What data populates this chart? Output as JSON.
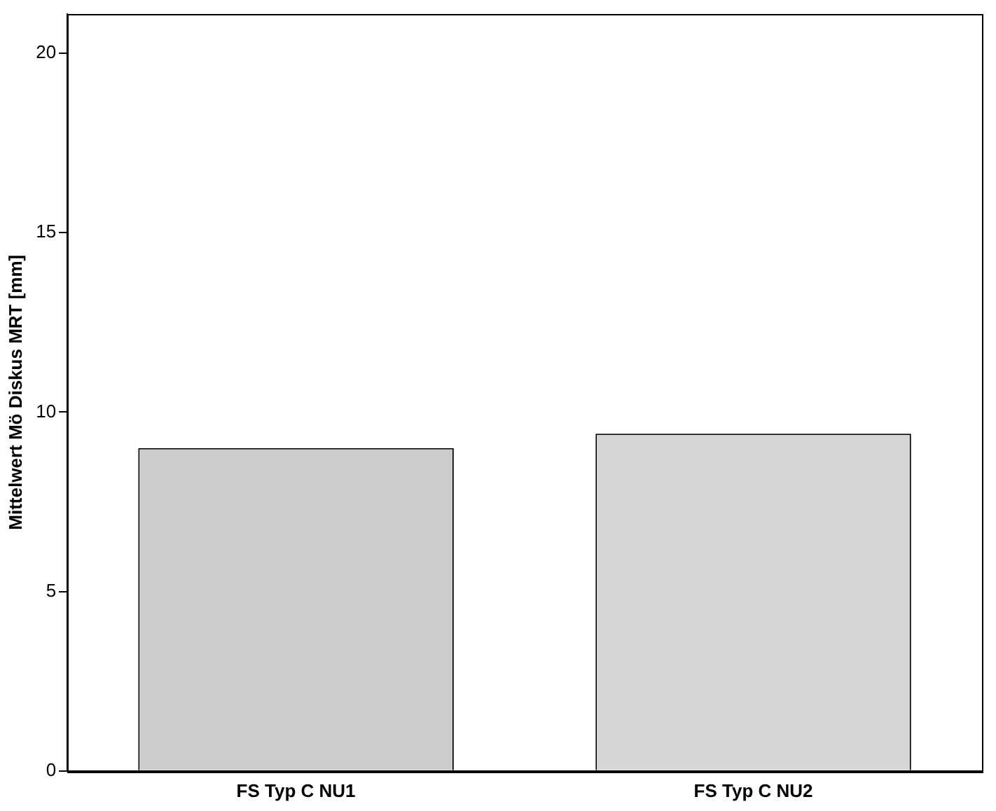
{
  "chart_data": {
    "type": "bar",
    "ylabel": "Mittelwert Mö Diskus MRT [mm]",
    "categories": [
      "FS Typ C NU1",
      "FS Typ C NU2"
    ],
    "values": [
      9.0,
      9.4
    ],
    "colors": [
      "#cccccc",
      "#d6d6d6"
    ],
    "ylim": [
      0,
      21.1
    ],
    "yticks": [
      0,
      5,
      10,
      15,
      20
    ],
    "grid": false,
    "legend": false
  }
}
